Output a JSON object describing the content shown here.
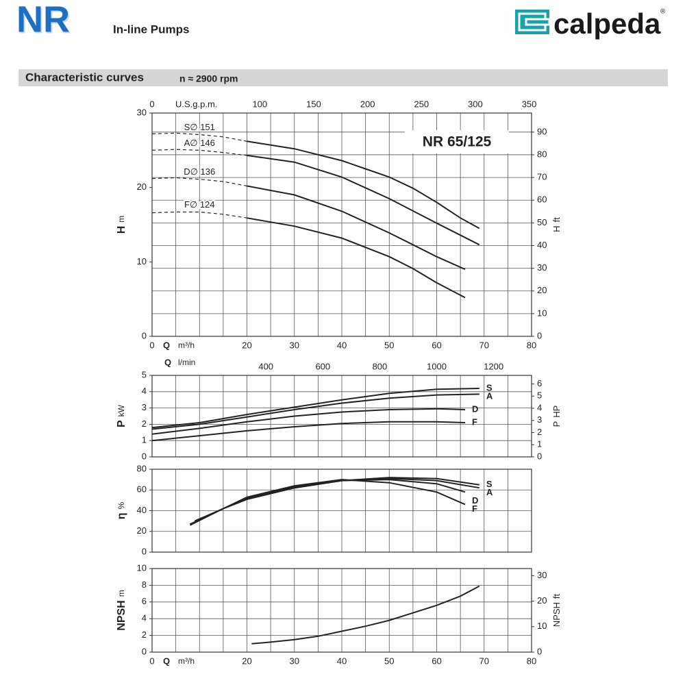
{
  "header": {
    "brand": "NR",
    "subtitle": "In-line Pumps",
    "logo": "calpeda",
    "logo_mark": "®"
  },
  "section": {
    "title": "Characteristic curves",
    "note": "n ≈ 2900 rpm"
  },
  "chart_data": [
    {
      "type": "line",
      "annotation": "NR 65/125",
      "label_position": "start",
      "xlabel": "Q",
      "xunit": "m³/h",
      "x2label": "U.S.g.p.m.",
      "ylabel": "H",
      "yunit": "m",
      "y2label": "H",
      "y2unit": "ft",
      "xlim": [
        0,
        80
      ],
      "xticks": [
        0,
        20,
        30,
        40,
        50,
        60,
        70,
        80
      ],
      "xgrid": [
        0,
        5,
        10,
        15,
        20,
        25,
        30,
        35,
        40,
        45,
        50,
        55,
        60,
        65,
        70,
        75,
        80
      ],
      "x2lim": [
        0,
        352.2
      ],
      "x2ticks": [
        0,
        100,
        150,
        200,
        250,
        300,
        350
      ],
      "ylim": [
        0,
        30
      ],
      "yticks": [
        0,
        10,
        20,
        30
      ],
      "y2lim": [
        0,
        98.4
      ],
      "y2ticks": [
        0,
        10,
        20,
        30,
        40,
        50,
        60,
        70,
        80,
        90
      ],
      "grid": "y2",
      "series": [
        {
          "name": "S∅ 151",
          "color": "#222",
          "x": [
            20,
            30,
            40,
            45,
            50,
            55,
            60,
            65,
            69
          ],
          "values": [
            26.2,
            25.2,
            23.6,
            22.5,
            21.4,
            19.9,
            18.0,
            15.9,
            14.5
          ],
          "dashed_x": [
            0,
            5,
            10,
            15,
            20
          ],
          "dashed_values": [
            27.2,
            27.3,
            27.1,
            26.8,
            26.2
          ]
        },
        {
          "name": "A∅ 146",
          "color": "#222",
          "x": [
            20,
            30,
            40,
            50,
            60,
            69
          ],
          "values": [
            24.3,
            23.4,
            21.4,
            18.5,
            15.2,
            12.3
          ],
          "dashed_x": [
            0,
            5,
            10,
            15,
            20
          ],
          "dashed_values": [
            25.0,
            25.1,
            25.0,
            24.7,
            24.3
          ]
        },
        {
          "name": "D∅ 136",
          "color": "#222",
          "x": [
            20,
            30,
            40,
            50,
            55,
            60,
            66
          ],
          "values": [
            20.2,
            19.0,
            16.8,
            13.9,
            12.3,
            10.7,
            9.0
          ],
          "dashed_x": [
            0,
            5,
            10,
            15,
            20
          ],
          "dashed_values": [
            21.2,
            21.3,
            21.1,
            20.8,
            20.2
          ]
        },
        {
          "name": "F∅ 124",
          "color": "#222",
          "x": [
            20,
            30,
            40,
            50,
            55,
            60,
            66
          ],
          "values": [
            15.9,
            14.8,
            13.2,
            10.7,
            9.1,
            7.2,
            5.2
          ],
          "dashed_x": [
            0,
            5,
            10,
            15,
            20
          ],
          "dashed_values": [
            16.6,
            16.7,
            16.7,
            16.4,
            15.9
          ]
        }
      ]
    },
    {
      "type": "line",
      "label_position": "end",
      "x2label": "Q",
      "x2unit": "l/min",
      "ylabel": "P",
      "yunit": "kW",
      "y2label": "P",
      "y2unit": "HP",
      "xlim": [
        0,
        80
      ],
      "xgrid": [
        0,
        5,
        10,
        15,
        20,
        25,
        30,
        35,
        40,
        45,
        50,
        55,
        60,
        65,
        70,
        75,
        80
      ],
      "x2lim": [
        0,
        1333.3
      ],
      "x2ticks": [
        400,
        600,
        800,
        1000,
        1200
      ],
      "ylim": [
        0,
        5
      ],
      "yticks": [
        0,
        1,
        2,
        3,
        4,
        5
      ],
      "y2lim": [
        0,
        6.705
      ],
      "y2ticks": [
        0,
        1,
        2,
        3,
        4,
        5,
        6
      ],
      "grid": "y",
      "series": [
        {
          "name": "S",
          "color": "#222",
          "x": [
            0,
            10,
            20,
            30,
            40,
            50,
            60,
            69
          ],
          "values": [
            1.8,
            2.1,
            2.6,
            3.05,
            3.5,
            3.9,
            4.15,
            4.2
          ]
        },
        {
          "name": "A",
          "color": "#222",
          "x": [
            0,
            10,
            20,
            30,
            40,
            50,
            60,
            69
          ],
          "values": [
            1.7,
            2.0,
            2.45,
            2.9,
            3.3,
            3.6,
            3.8,
            3.85
          ]
        },
        {
          "name": "D",
          "color": "#222",
          "x": [
            0,
            10,
            20,
            30,
            40,
            50,
            60,
            66
          ],
          "values": [
            1.4,
            1.75,
            2.15,
            2.5,
            2.75,
            2.9,
            2.95,
            2.9
          ]
        },
        {
          "name": "F",
          "color": "#222",
          "x": [
            0,
            10,
            20,
            30,
            40,
            50,
            60,
            66
          ],
          "values": [
            1.0,
            1.3,
            1.6,
            1.85,
            2.05,
            2.15,
            2.15,
            2.1
          ]
        }
      ]
    },
    {
      "type": "line",
      "label_position": "end",
      "ylabel": "η",
      "yunit": "%",
      "xlim": [
        0,
        80
      ],
      "xgrid": [
        0,
        5,
        10,
        15,
        20,
        25,
        30,
        35,
        40,
        45,
        50,
        55,
        60,
        65,
        70,
        75,
        80
      ],
      "ylim": [
        0,
        80
      ],
      "yticks": [
        0,
        20,
        40,
        60,
        80
      ],
      "grid": "y",
      "series": [
        {
          "name": "S",
          "color": "#222",
          "x": [
            9,
            15,
            20,
            30,
            40,
            50,
            60,
            69
          ],
          "values": [
            30,
            42,
            51,
            62,
            69,
            72,
            71,
            65
          ]
        },
        {
          "name": "A",
          "color": "#222",
          "x": [
            9,
            15,
            20,
            30,
            40,
            50,
            60,
            69
          ],
          "values": [
            29,
            42,
            51,
            62,
            69,
            71,
            69,
            62
          ]
        },
        {
          "name": "D",
          "color": "#222",
          "x": [
            8,
            15,
            20,
            30,
            40,
            50,
            60,
            66
          ],
          "values": [
            27,
            42,
            52,
            63,
            69,
            70,
            66,
            58
          ]
        },
        {
          "name": "F",
          "color": "#222",
          "x": [
            8,
            15,
            20,
            30,
            40,
            50,
            60,
            66
          ],
          "values": [
            26,
            42,
            53,
            64,
            70,
            67,
            58,
            46
          ]
        }
      ]
    },
    {
      "type": "line",
      "xlabel": "Q",
      "xunit": "m³/h",
      "ylabel": "NPSH",
      "yunit": "m",
      "y2label": "NPSH",
      "y2unit": "ft",
      "xlim": [
        0,
        80
      ],
      "xticks": [
        0,
        20,
        30,
        40,
        50,
        60,
        70,
        80
      ],
      "xgrid": [
        0,
        5,
        10,
        15,
        20,
        25,
        30,
        35,
        40,
        45,
        50,
        55,
        60,
        65,
        70,
        75,
        80
      ],
      "ylim": [
        0,
        10
      ],
      "yticks": [
        0,
        2,
        4,
        6,
        8,
        10
      ],
      "y2lim": [
        0,
        32.8
      ],
      "y2ticks": [
        0,
        10,
        20,
        30
      ],
      "grid": "y",
      "series": [
        {
          "color": "#222",
          "x": [
            21,
            25,
            30,
            35,
            40,
            45,
            50,
            55,
            60,
            65,
            69
          ],
          "values": [
            1.0,
            1.2,
            1.5,
            1.9,
            2.5,
            3.1,
            3.8,
            4.7,
            5.6,
            6.7,
            7.9
          ]
        }
      ]
    }
  ]
}
